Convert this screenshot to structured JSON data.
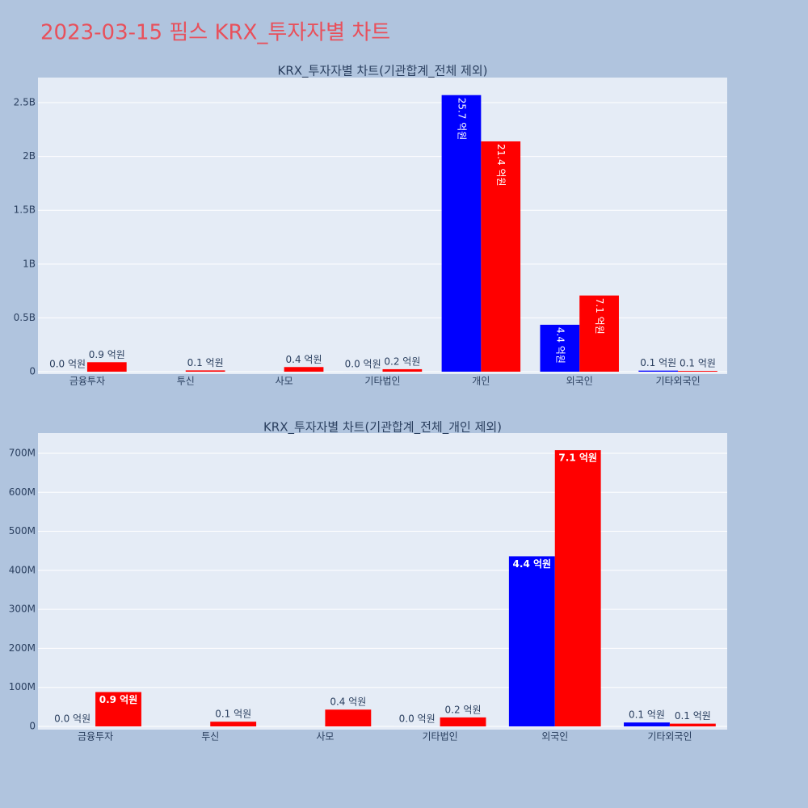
{
  "title": "2023-03-15 핌스 KRX_투자자별 차트",
  "chart_data": [
    {
      "type": "bar",
      "title": "KRX_투자자별 차트(기관합계_전체 제외)",
      "categories": [
        "금융투자",
        "투신",
        "사모",
        "기타법인",
        "개인",
        "외국인",
        "기타외국인"
      ],
      "series": [
        {
          "color": "#0000ff",
          "values": [
            0,
            null,
            null,
            0,
            2570000000,
            436000000,
            10000000
          ],
          "value_labels": [
            "0.0 억원",
            null,
            null,
            "0.0 억원",
            "25.7 억원",
            "4.4 억원",
            "0.1 억원"
          ]
        },
        {
          "color": "#ff0000",
          "values": [
            88000000,
            12000000,
            43000000,
            23000000,
            2140000000,
            708000000,
            7000000
          ],
          "value_labels": [
            "0.9 억원",
            "0.1 억원",
            "0.4 억원",
            "0.2 억원",
            "21.4 억원",
            "7.1 억원",
            "0.1 억원"
          ]
        }
      ],
      "ylim": [
        -22500000,
        2733000000
      ],
      "yticks": [
        0,
        {
          "value": 500000000,
          "label": "0.5B"
        },
        {
          "value": 1000000000,
          "label": "1B"
        },
        {
          "value": 1500000000,
          "label": "1.5B"
        },
        {
          "value": 2000000000,
          "label": "2B"
        },
        {
          "value": 2500000000,
          "label": "2.5B"
        }
      ],
      "grid": true
    },
    {
      "type": "bar",
      "title": "KRX_투자자별 차트(기관합계_전체_개인 제외)",
      "categories": [
        "금융투자",
        "투신",
        "사모",
        "기타법인",
        "외국인",
        "기타외국인"
      ],
      "series": [
        {
          "color": "#0000ff",
          "values": [
            0,
            null,
            null,
            0,
            436000000,
            10000000
          ],
          "value_labels": [
            "0.0 억원",
            null,
            null,
            "0.0 억원",
            "4.4 억원",
            "0.1 억원"
          ]
        },
        {
          "color": "#ff0000",
          "values": [
            88000000,
            12000000,
            43000000,
            23000000,
            708000000,
            7000000
          ],
          "value_labels": [
            "0.9 억원",
            "0.1 억원",
            "0.4 억원",
            "0.2 억원",
            "7.1 억원",
            "0.1 억원"
          ]
        }
      ],
      "ylim": [
        -8300000,
        751700000
      ],
      "yticks": [
        0,
        {
          "value": 100000000,
          "label": "100M"
        },
        {
          "value": 200000000,
          "label": "200M"
        },
        {
          "value": 300000000,
          "label": "300M"
        },
        {
          "value": 400000000,
          "label": "400M"
        },
        {
          "value": 500000000,
          "label": "500M"
        },
        {
          "value": 600000000,
          "label": "600M"
        },
        {
          "value": 700000000,
          "label": "700M"
        }
      ],
      "grid": true
    }
  ]
}
